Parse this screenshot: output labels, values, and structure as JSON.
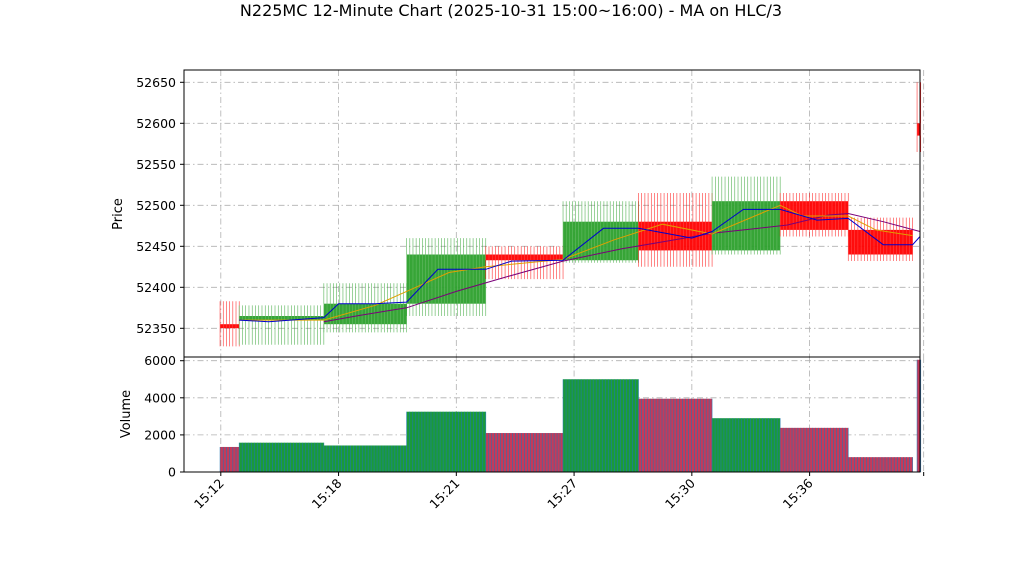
{
  "chart_data": {
    "type": "candlestick",
    "title": "N225MC 12-Minute Chart (2025-10-31 15:00~16:00) - MA on HLC/3",
    "price_panel": {
      "ylabel": "Price",
      "ylim": [
        52315,
        52665
      ],
      "yticks": [
        52350,
        52400,
        52450,
        52500,
        52550,
        52600,
        52650
      ]
    },
    "volume_panel": {
      "ylabel": "Volume",
      "ylim": [
        0,
        6200
      ],
      "yticks": [
        0,
        2000,
        4000,
        6000
      ]
    },
    "xlim": [
      14.8,
      34.8
    ],
    "xtick_positions": [
      15.8,
      19.0,
      22.2,
      25.4,
      28.6,
      31.8,
      34.9
    ],
    "xtick_labels": [
      "15:12",
      "15:18",
      "15:21",
      "15:27",
      "15:30",
      "15:36",
      ""
    ],
    "grid": true,
    "colors": {
      "up": "#2ca02c",
      "down": "#ff0000",
      "vol_up_fill": "#1a9a3a",
      "vol_down_fill": "#c43a5a",
      "vol_stripe": "#1f77b4",
      "ma_short": "#0000cc",
      "ma_mid": "#e0a000",
      "ma_long": "#7a007a"
    },
    "bars": [
      {
        "x0": 15.78,
        "x1": 16.3,
        "open": 52355,
        "high": 52383,
        "low": 52328,
        "close": 52355,
        "volume": 1350,
        "dir": "down"
      },
      {
        "x0": 16.3,
        "x1": 18.6,
        "open": 52361,
        "high": 52378,
        "low": 52330,
        "close": 52365,
        "volume": 1580,
        "dir": "up"
      },
      {
        "x0": 18.6,
        "x1": 20.85,
        "open": 52355,
        "high": 52405,
        "low": 52345,
        "close": 52380,
        "volume": 1430,
        "dir": "up"
      },
      {
        "x0": 20.85,
        "x1": 23.0,
        "open": 52380,
        "high": 52460,
        "low": 52365,
        "close": 52440,
        "volume": 3250,
        "dir": "up"
      },
      {
        "x0": 23.0,
        "x1": 25.1,
        "open": 52440,
        "high": 52450,
        "low": 52410,
        "close": 52433,
        "volume": 2100,
        "dir": "down"
      },
      {
        "x0": 25.1,
        "x1": 27.15,
        "open": 52433,
        "high": 52505,
        "low": 52430,
        "close": 52480,
        "volume": 5000,
        "dir": "up"
      },
      {
        "x0": 27.15,
        "x1": 29.15,
        "open": 52480,
        "high": 52515,
        "low": 52425,
        "close": 52445,
        "volume": 3950,
        "dir": "down"
      },
      {
        "x0": 29.15,
        "x1": 31.0,
        "open": 52445,
        "high": 52535,
        "low": 52440,
        "close": 52505,
        "volume": 2900,
        "dir": "up"
      },
      {
        "x0": 31.0,
        "x1": 32.85,
        "open": 52505,
        "high": 52515,
        "low": 52462,
        "close": 52470,
        "volume": 2380,
        "dir": "down"
      },
      {
        "x0": 32.85,
        "x1": 34.6,
        "open": 52470,
        "high": 52485,
        "low": 52432,
        "close": 52440,
        "volume": 800,
        "dir": "down"
      },
      {
        "x0": 34.72,
        "x1": 34.82,
        "open": 52600,
        "high": 52650,
        "low": 52565,
        "close": 52585,
        "volume": 6050,
        "dir": "down"
      }
    ],
    "ma_short": [
      [
        16.3,
        52360
      ],
      [
        17.1,
        52358
      ],
      [
        18.6,
        52363
      ],
      [
        19.0,
        52380
      ],
      [
        20.0,
        52380
      ],
      [
        20.85,
        52382
      ],
      [
        21.7,
        52422
      ],
      [
        23.0,
        52422
      ],
      [
        23.7,
        52432
      ],
      [
        25.1,
        52433
      ],
      [
        26.2,
        52472
      ],
      [
        27.15,
        52472
      ],
      [
        28.6,
        52460
      ],
      [
        29.15,
        52468
      ],
      [
        30.0,
        52495
      ],
      [
        31.0,
        52495
      ],
      [
        32.0,
        52482
      ],
      [
        32.85,
        52484
      ],
      [
        33.8,
        52452
      ],
      [
        34.6,
        52452
      ],
      [
        34.8,
        52462
      ]
    ],
    "ma_mid": [
      [
        16.3,
        52360
      ],
      [
        18.6,
        52360
      ],
      [
        20.0,
        52378
      ],
      [
        21.0,
        52398
      ],
      [
        22.0,
        52418
      ],
      [
        23.0,
        52425
      ],
      [
        25.1,
        52434
      ],
      [
        26.5,
        52458
      ],
      [
        27.8,
        52477
      ],
      [
        29.15,
        52465
      ],
      [
        31.0,
        52500
      ],
      [
        31.6,
        52487
      ],
      [
        32.85,
        52487
      ],
      [
        33.6,
        52470
      ],
      [
        34.6,
        52463
      ]
    ],
    "ma_long": [
      [
        18.6,
        52358
      ],
      [
        19.6,
        52366
      ],
      [
        20.85,
        52375
      ],
      [
        22.2,
        52395
      ],
      [
        23.5,
        52412
      ],
      [
        25.1,
        52432
      ],
      [
        26.7,
        52447
      ],
      [
        28.0,
        52457
      ],
      [
        29.15,
        52466
      ],
      [
        30.2,
        52471
      ],
      [
        31.2,
        52476
      ],
      [
        32.3,
        52488
      ],
      [
        32.85,
        52490
      ],
      [
        33.8,
        52480
      ],
      [
        34.8,
        52468
      ]
    ]
  }
}
